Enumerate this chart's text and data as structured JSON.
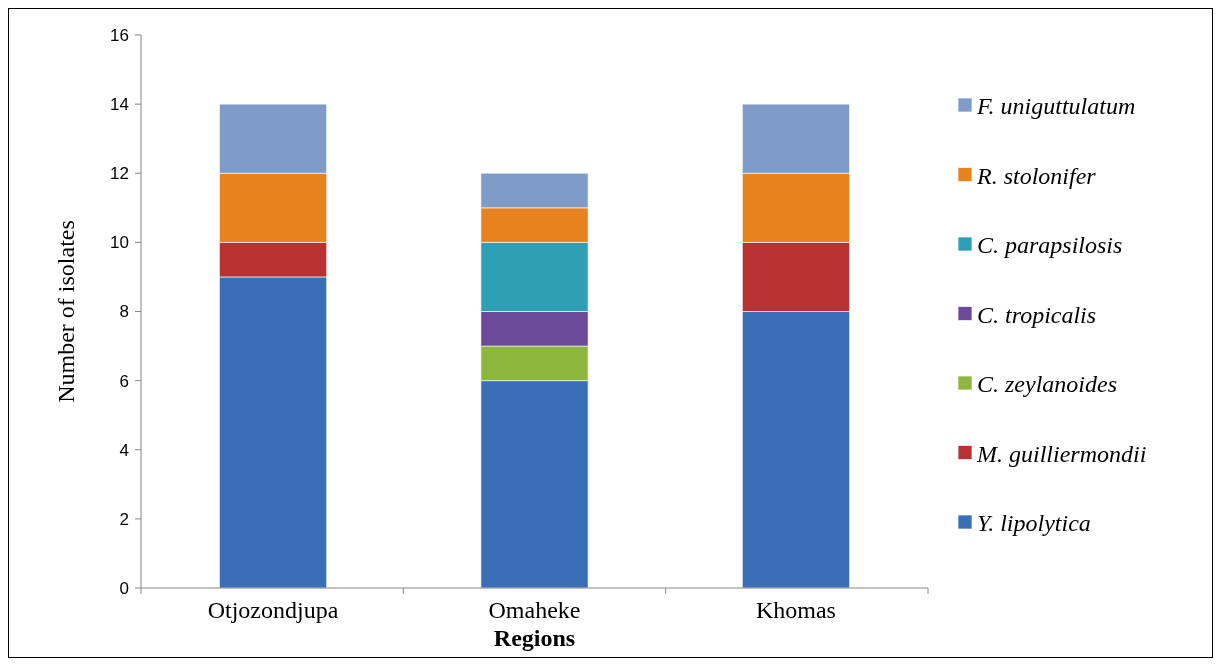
{
  "chart_data": {
    "type": "bar",
    "stacked": true,
    "xlabel": "Regions",
    "ylabel": "Number of isolates",
    "categories": [
      "Otjozondjupa",
      "Omaheke",
      "Khomas"
    ],
    "series": [
      {
        "name": "Y. lipolytica",
        "color": "#3a6fb8",
        "values": [
          9,
          6,
          8
        ]
      },
      {
        "name": "M. guilliermondii",
        "color": "#b83232",
        "values": [
          1,
          null,
          2
        ]
      },
      {
        "name": "C. zeylanoides",
        "color": "#8db63c",
        "values": [
          null,
          1,
          null
        ]
      },
      {
        "name": "C. tropicalis",
        "color": "#6b4a99",
        "values": [
          null,
          1,
          null
        ]
      },
      {
        "name": "C. parapsilosis",
        "color": "#2e9fb4",
        "values": [
          null,
          2,
          null
        ]
      },
      {
        "name": "R. stolonifer",
        "color": "#e8821e",
        "values": [
          2,
          1,
          2
        ]
      },
      {
        "name": "F. uniguttulatum",
        "color": "#7f9cc9",
        "values": [
          2,
          1,
          2
        ]
      }
    ],
    "ylim": [
      0,
      16
    ],
    "yticks": [
      0,
      2,
      4,
      6,
      8,
      10,
      12,
      14,
      16
    ],
    "grid": false,
    "legend": "right"
  }
}
